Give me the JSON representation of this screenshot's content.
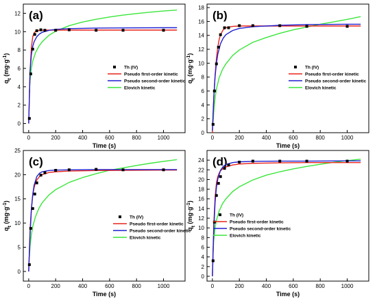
{
  "chart_data": [
    {
      "type": "scatter",
      "panel_label": "(a)",
      "xlabel": "Time (s)",
      "ylabel": "qt (mg·g⁻¹)",
      "ylabel_parts": {
        "main": "q",
        "sub": "t",
        "rest": " (mg·g",
        "sup": "-1",
        "end": ")"
      },
      "xlim": [
        -40,
        1160
      ],
      "ylim": [
        -1,
        13
      ],
      "xticks": [
        0,
        200,
        400,
        600,
        800,
        1000,
        1200
      ],
      "yticks": [
        0,
        2,
        4,
        6,
        8,
        10,
        12
      ],
      "grid": false,
      "legend_position": "center-right",
      "series": [
        {
          "name": "Th (IV)",
          "kind": "points",
          "color": "#000000",
          "x": [
            5,
            15,
            30,
            45,
            60,
            90,
            120,
            200,
            300,
            500,
            700,
            1000
          ],
          "y": [
            0.55,
            5.4,
            8.1,
            9.7,
            10.1,
            10.2,
            10.15,
            10.15,
            10.2,
            10.15,
            10.15,
            10.15
          ]
        },
        {
          "name": "Pseudo first-order kinetic",
          "kind": "line",
          "color": "#e8231a",
          "x": [
            0,
            10,
            20,
            30,
            40,
            50,
            60,
            80,
            100,
            150,
            200,
            300,
            500,
            700,
            1000,
            1100
          ],
          "y": [
            0,
            5.7,
            8.3,
            9.45,
            9.85,
            10.02,
            10.1,
            10.15,
            10.16,
            10.17,
            10.17,
            10.17,
            10.17,
            10.17,
            10.17,
            10.17
          ]
        },
        {
          "name": "Pseudo second-order kinetic",
          "kind": "line",
          "color": "#1f1fd0",
          "x": [
            0,
            10,
            20,
            30,
            40,
            60,
            80,
            100,
            150,
            200,
            300,
            500,
            700,
            1000,
            1100
          ],
          "y": [
            0,
            5.6,
            7.5,
            8.4,
            8.9,
            9.45,
            9.75,
            9.93,
            10.14,
            10.25,
            10.33,
            10.39,
            10.41,
            10.43,
            10.43
          ]
        },
        {
          "name": "Elovich kinetic",
          "kind": "line",
          "color": "#39e639",
          "x": [
            5,
            10,
            20,
            30,
            50,
            75,
            100,
            150,
            200,
            300,
            400,
            500,
            600,
            700,
            800,
            900,
            1000,
            1100
          ],
          "y": [
            3.4,
            4.7,
            6.0,
            6.8,
            7.7,
            8.4,
            8.9,
            9.6,
            10.05,
            10.65,
            11.05,
            11.35,
            11.6,
            11.8,
            11.97,
            12.12,
            12.25,
            12.35
          ]
        }
      ]
    },
    {
      "type": "scatter",
      "panel_label": "(b)",
      "xlabel": "Time (s)",
      "ylabel": "qt (mg·g⁻¹)",
      "ylabel_parts": {
        "main": "q",
        "sub": "t",
        "rest": " (mg·g",
        "sup": "-1",
        "end": ")"
      },
      "xlim": [
        -40,
        1160
      ],
      "ylim": [
        0,
        18.5
      ],
      "xticks": [
        0,
        200,
        400,
        600,
        800,
        1000,
        1200
      ],
      "yticks": [
        0,
        2,
        4,
        6,
        8,
        10,
        12,
        14,
        16,
        18
      ],
      "grid": false,
      "legend_position": "center-right",
      "series": [
        {
          "name": "Th (IV)",
          "kind": "points",
          "color": "#000000",
          "x": [
            5,
            15,
            30,
            45,
            60,
            90,
            120,
            200,
            300,
            500,
            700,
            1000
          ],
          "y": [
            1.2,
            6.0,
            9.9,
            12.3,
            14.1,
            15.1,
            15.1,
            15.4,
            15.4,
            15.4,
            15.3,
            15.3
          ]
        },
        {
          "name": "Pseudo first-order kinetic",
          "kind": "line",
          "color": "#e8231a",
          "x": [
            0,
            10,
            20,
            30,
            40,
            50,
            60,
            80,
            100,
            150,
            200,
            300,
            500,
            700,
            1000,
            1100
          ],
          "y": [
            0,
            4.8,
            8.3,
            10.7,
            12.3,
            13.4,
            14.1,
            14.8,
            15.1,
            15.3,
            15.35,
            15.35,
            15.35,
            15.35,
            15.35,
            15.35
          ]
        },
        {
          "name": "Pseudo second-order kinetic",
          "kind": "line",
          "color": "#1f1fd0",
          "x": [
            0,
            10,
            20,
            30,
            40,
            60,
            80,
            100,
            150,
            200,
            300,
            500,
            700,
            1000,
            1100
          ],
          "y": [
            0.3,
            5.0,
            8.1,
            10.0,
            11.3,
            12.8,
            13.6,
            14.1,
            14.7,
            15.0,
            15.25,
            15.45,
            15.55,
            15.6,
            15.6
          ]
        },
        {
          "name": "Elovich kinetic",
          "kind": "line",
          "color": "#39e639",
          "x": [
            5,
            10,
            20,
            30,
            50,
            75,
            100,
            150,
            200,
            300,
            400,
            500,
            600,
            700,
            800,
            900,
            1000,
            1100
          ],
          "y": [
            1.5,
            3.0,
            5.0,
            6.3,
            7.9,
            9.1,
            9.9,
            11.1,
            11.9,
            13.0,
            13.7,
            14.3,
            14.8,
            15.2,
            15.6,
            15.95,
            16.3,
            16.7
          ]
        }
      ]
    },
    {
      "type": "scatter",
      "panel_label": "(c)",
      "xlabel": "Time (s)",
      "ylabel": "qt (mg·g⁻¹)",
      "ylabel_parts": {
        "main": "q",
        "sub": "t",
        "rest": " (mg·g",
        "sup": "-1",
        "end": ")"
      },
      "xlim": [
        -40,
        1160
      ],
      "ylim": [
        -2,
        25
      ],
      "xticks": [
        0,
        200,
        400,
        600,
        800,
        1000,
        1200
      ],
      "yticks": [
        0,
        5,
        10,
        15,
        20,
        25
      ],
      "grid": false,
      "legend_position": "center-right",
      "series": [
        {
          "name": "Th (IV)",
          "kind": "points",
          "color": "#000000",
          "x": [
            5,
            15,
            30,
            45,
            60,
            90,
            120,
            200,
            300,
            500,
            700,
            1000
          ],
          "y": [
            1.4,
            8.9,
            13.0,
            16.0,
            18.3,
            19.9,
            20.4,
            20.9,
            21.0,
            21.1,
            21.0,
            21.0
          ]
        },
        {
          "name": "Pseudo first-order kinetic",
          "kind": "line",
          "color": "#e8231a",
          "x": [
            0,
            10,
            20,
            30,
            40,
            50,
            60,
            80,
            100,
            150,
            200,
            300,
            500,
            700,
            1000,
            1100
          ],
          "y": [
            0,
            8.5,
            13.0,
            15.8,
            17.3,
            18.3,
            18.9,
            19.6,
            20.0,
            20.45,
            20.6,
            20.75,
            20.85,
            20.9,
            20.95,
            20.95
          ]
        },
        {
          "name": "Pseudo second-order kinetic",
          "kind": "line",
          "color": "#1f1fd0",
          "x": [
            0,
            10,
            20,
            30,
            40,
            60,
            80,
            100,
            150,
            200,
            300,
            500,
            700,
            1000,
            1100
          ],
          "y": [
            0,
            7.5,
            12.8,
            15.9,
            17.8,
            19.6,
            20.3,
            20.6,
            20.85,
            20.95,
            21.0,
            21.05,
            21.05,
            21.05,
            21.05
          ]
        },
        {
          "name": "Elovich kinetic",
          "kind": "line",
          "color": "#39e639",
          "x": [
            5,
            10,
            20,
            30,
            50,
            75,
            100,
            150,
            200,
            300,
            400,
            500,
            600,
            700,
            800,
            900,
            1000,
            1100
          ],
          "y": [
            3.0,
            5.2,
            7.6,
            9.3,
            11.3,
            13.0,
            14.2,
            15.8,
            16.9,
            18.4,
            19.4,
            20.2,
            20.9,
            21.4,
            21.9,
            22.35,
            22.75,
            23.1
          ]
        }
      ]
    },
    {
      "type": "scatter",
      "panel_label": "(d)",
      "xlabel": "Time (s)",
      "ylabel": "qt (mg·g⁻¹)",
      "ylabel_parts": {
        "main": "q",
        "sub": "t",
        "rest": " (mg·g",
        "sup": "-1",
        "end": ")"
      },
      "xlim": [
        -40,
        1160
      ],
      "ylim": [
        -1,
        26
      ],
      "xticks": [
        0,
        200,
        400,
        600,
        800,
        1000,
        1200
      ],
      "yticks": [
        0,
        2,
        4,
        6,
        8,
        10,
        12,
        14,
        16,
        18,
        20,
        22,
        24
      ],
      "grid": false,
      "legend_position": "center-left",
      "series": [
        {
          "name": "Th (IV)",
          "kind": "points",
          "color": "#000000",
          "x": [
            5,
            15,
            30,
            45,
            60,
            90,
            120,
            200,
            300,
            500,
            700,
            1000
          ],
          "y": [
            3.2,
            11.2,
            16.7,
            19.2,
            20.6,
            22.3,
            23.0,
            23.6,
            23.8,
            23.8,
            23.8,
            23.8
          ]
        },
        {
          "name": "Pseudo first-order kinetic",
          "kind": "line",
          "color": "#e8231a",
          "x": [
            0,
            10,
            20,
            30,
            40,
            50,
            60,
            80,
            100,
            150,
            200,
            300,
            500,
            700,
            1000,
            1100
          ],
          "y": [
            0,
            10.5,
            16.3,
            19.3,
            20.6,
            21.3,
            21.8,
            22.3,
            22.6,
            23.0,
            23.2,
            23.35,
            23.45,
            23.5,
            23.5,
            23.5
          ]
        },
        {
          "name": "Pseudo second-order kinetic",
          "kind": "line",
          "color": "#1f1fd0",
          "x": [
            0,
            10,
            20,
            30,
            40,
            60,
            80,
            100,
            150,
            200,
            300,
            500,
            700,
            1000,
            1100
          ],
          "y": [
            0,
            9.4,
            15.3,
            18.4,
            20.1,
            21.9,
            22.7,
            23.1,
            23.5,
            23.65,
            23.75,
            23.8,
            23.8,
            23.85,
            23.85
          ]
        },
        {
          "name": "Elovich kinetic",
          "kind": "line",
          "color": "#39e639",
          "x": [
            5,
            10,
            20,
            30,
            50,
            75,
            100,
            150,
            200,
            300,
            400,
            500,
            600,
            700,
            800,
            900,
            1000,
            1100
          ],
          "y": [
            5.0,
            7.5,
            10.1,
            11.6,
            13.5,
            15.0,
            16.0,
            17.5,
            18.5,
            19.9,
            20.9,
            21.6,
            22.2,
            22.7,
            23.15,
            23.55,
            23.9,
            24.2
          ]
        }
      ]
    }
  ]
}
